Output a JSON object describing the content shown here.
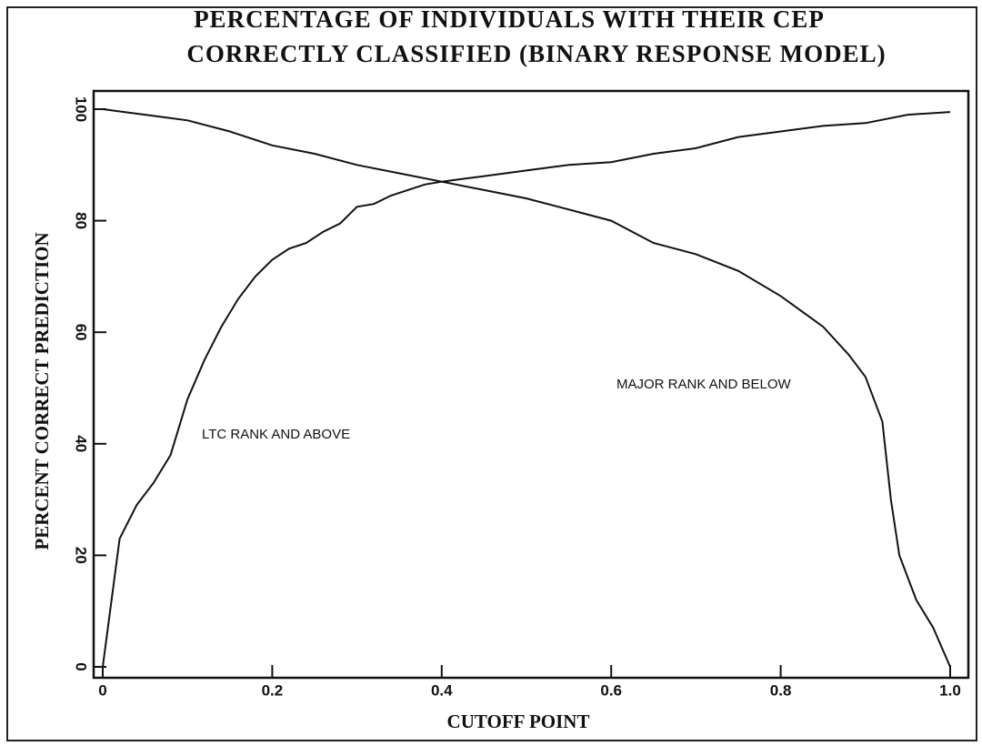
{
  "chart_data": {
    "type": "line",
    "title": [
      "PERCENTAGE OF INDIVIDUALS WITH THEIR CEP",
      "CORRECTLY CLASSIFIED (BINARY RESPONSE MODEL)"
    ],
    "x_label": "CUTOFF POINT",
    "y_label": "PERCENT CORRECT PREDICTION",
    "annotations": [
      "LTC RANK AND ABOVE",
      "MAJOR RANK AND BELOW"
    ],
    "series": [
      {
        "name": "LTC RANK AND ABOVE",
        "color": "#111111",
        "x": [
          0,
          0.02,
          0.04,
          0.06,
          0.08,
          0.1,
          0.12,
          0.14,
          0.16,
          0.18,
          0.2,
          0.22,
          0.24,
          0.26,
          0.28,
          0.3,
          0.32,
          0.34,
          0.36,
          0.38,
          0.4,
          0.45,
          0.5,
          0.55,
          0.6,
          0.65,
          0.7,
          0.75,
          0.8,
          0.85,
          0.9,
          0.95,
          1.0
        ],
        "values": [
          0,
          23,
          29,
          33,
          38,
          48,
          55,
          61,
          66,
          70,
          73,
          75,
          76,
          78,
          79.5,
          82.5,
          83,
          84.5,
          85.5,
          86.5,
          87,
          88,
          89,
          90,
          90.5,
          92,
          93,
          95,
          96,
          97,
          97.5,
          99,
          99.5
        ]
      },
      {
        "name": "MAJOR RANK AND BELOW",
        "color": "#111111",
        "x": [
          0,
          0.05,
          0.1,
          0.15,
          0.2,
          0.25,
          0.3,
          0.35,
          0.4,
          0.45,
          0.5,
          0.55,
          0.6,
          0.65,
          0.7,
          0.75,
          0.8,
          0.85,
          0.88,
          0.9,
          0.92,
          0.93,
          0.94,
          0.96,
          0.98,
          1.0
        ],
        "values": [
          100,
          99,
          98,
          96,
          93.5,
          92,
          90,
          88.5,
          87,
          85.5,
          84,
          82,
          80,
          76,
          74,
          71,
          66.5,
          61,
          56,
          52,
          44,
          30,
          20,
          12,
          7,
          0
        ]
      }
    ],
    "xlim": [
      0,
      1
    ],
    "xticks": [
      0,
      0.2,
      0.4,
      0.6,
      0.8,
      {
        "value": 1,
        "label": "1.0"
      }
    ],
    "ylim": [
      0,
      100
    ],
    "yticks": [
      0,
      20,
      40,
      60,
      80,
      100
    ]
  }
}
